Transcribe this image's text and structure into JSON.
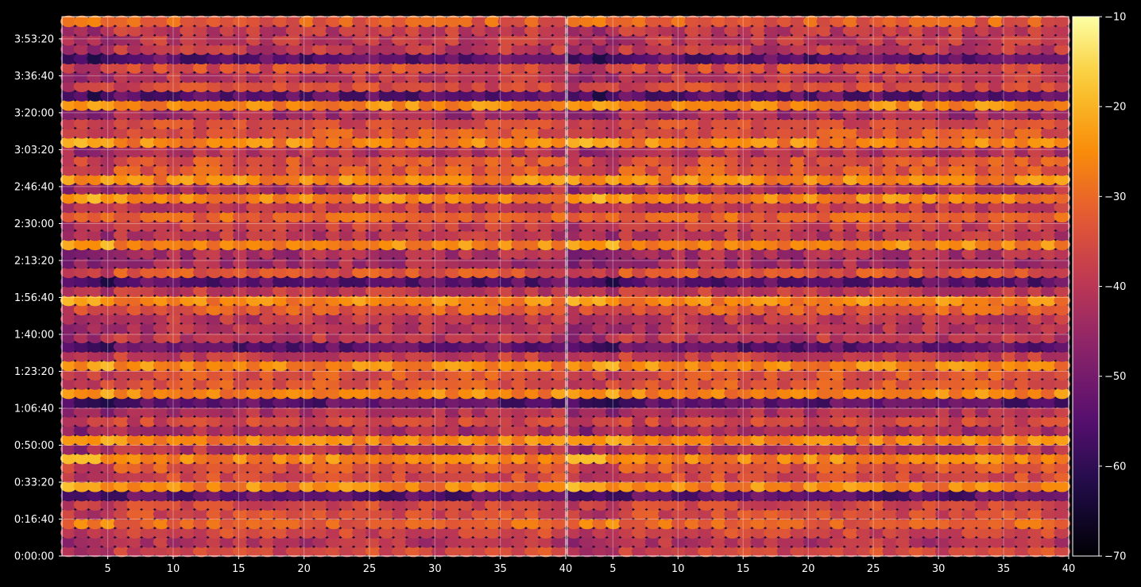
{
  "chart_data": {
    "type": "heatmap",
    "panels": 2,
    "title": "",
    "xlabel": "",
    "ylabel": "",
    "xlim": [
      1.5,
      40
    ],
    "ylim_seconds": [
      0,
      14600
    ],
    "x_ticks": [
      5,
      10,
      15,
      20,
      25,
      30,
      35,
      40
    ],
    "y_ticks": [
      "0:00:00",
      "0:16:40",
      "0:33:20",
      "0:50:00",
      "1:06:40",
      "1:23:20",
      "1:40:00",
      "1:56:40",
      "2:13:20",
      "2:30:00",
      "2:46:40",
      "3:03:20",
      "3:20:00",
      "3:36:40",
      "3:53:20"
    ],
    "y_tick_seconds": [
      0,
      1000,
      2000,
      3000,
      4000,
      5000,
      6000,
      7000,
      8000,
      9000,
      10000,
      11000,
      12000,
      13000,
      14000
    ],
    "grid": true,
    "colormap": "inferno",
    "colorbar": {
      "range": [
        -70,
        -10
      ],
      "ticks": [
        -10,
        -20,
        -30,
        -40,
        -50,
        -60,
        -70
      ],
      "tick_labels": [
        "−10",
        "−20",
        "−30",
        "−40",
        "−50",
        "−60",
        "−70"
      ],
      "location": "right"
    },
    "cell_grid": {
      "columns": 38,
      "rows": 58
    },
    "value_profile": {
      "typical_range": [
        -50,
        -22
      ],
      "bright_rows_near_time": [
        "0:33:20",
        "0:45:00",
        "0:51:00",
        "1:12:00",
        "1:27:00",
        "1:57:00",
        "2:22:00",
        "2:40:00",
        "2:50:00",
        "3:05:00",
        "3:24:00"
      ],
      "dark_rows_near_time": [
        "0:29:00",
        "1:09:00",
        "1:34:00",
        "2:02:00",
        "3:28:00",
        "3:45:00"
      ]
    }
  }
}
